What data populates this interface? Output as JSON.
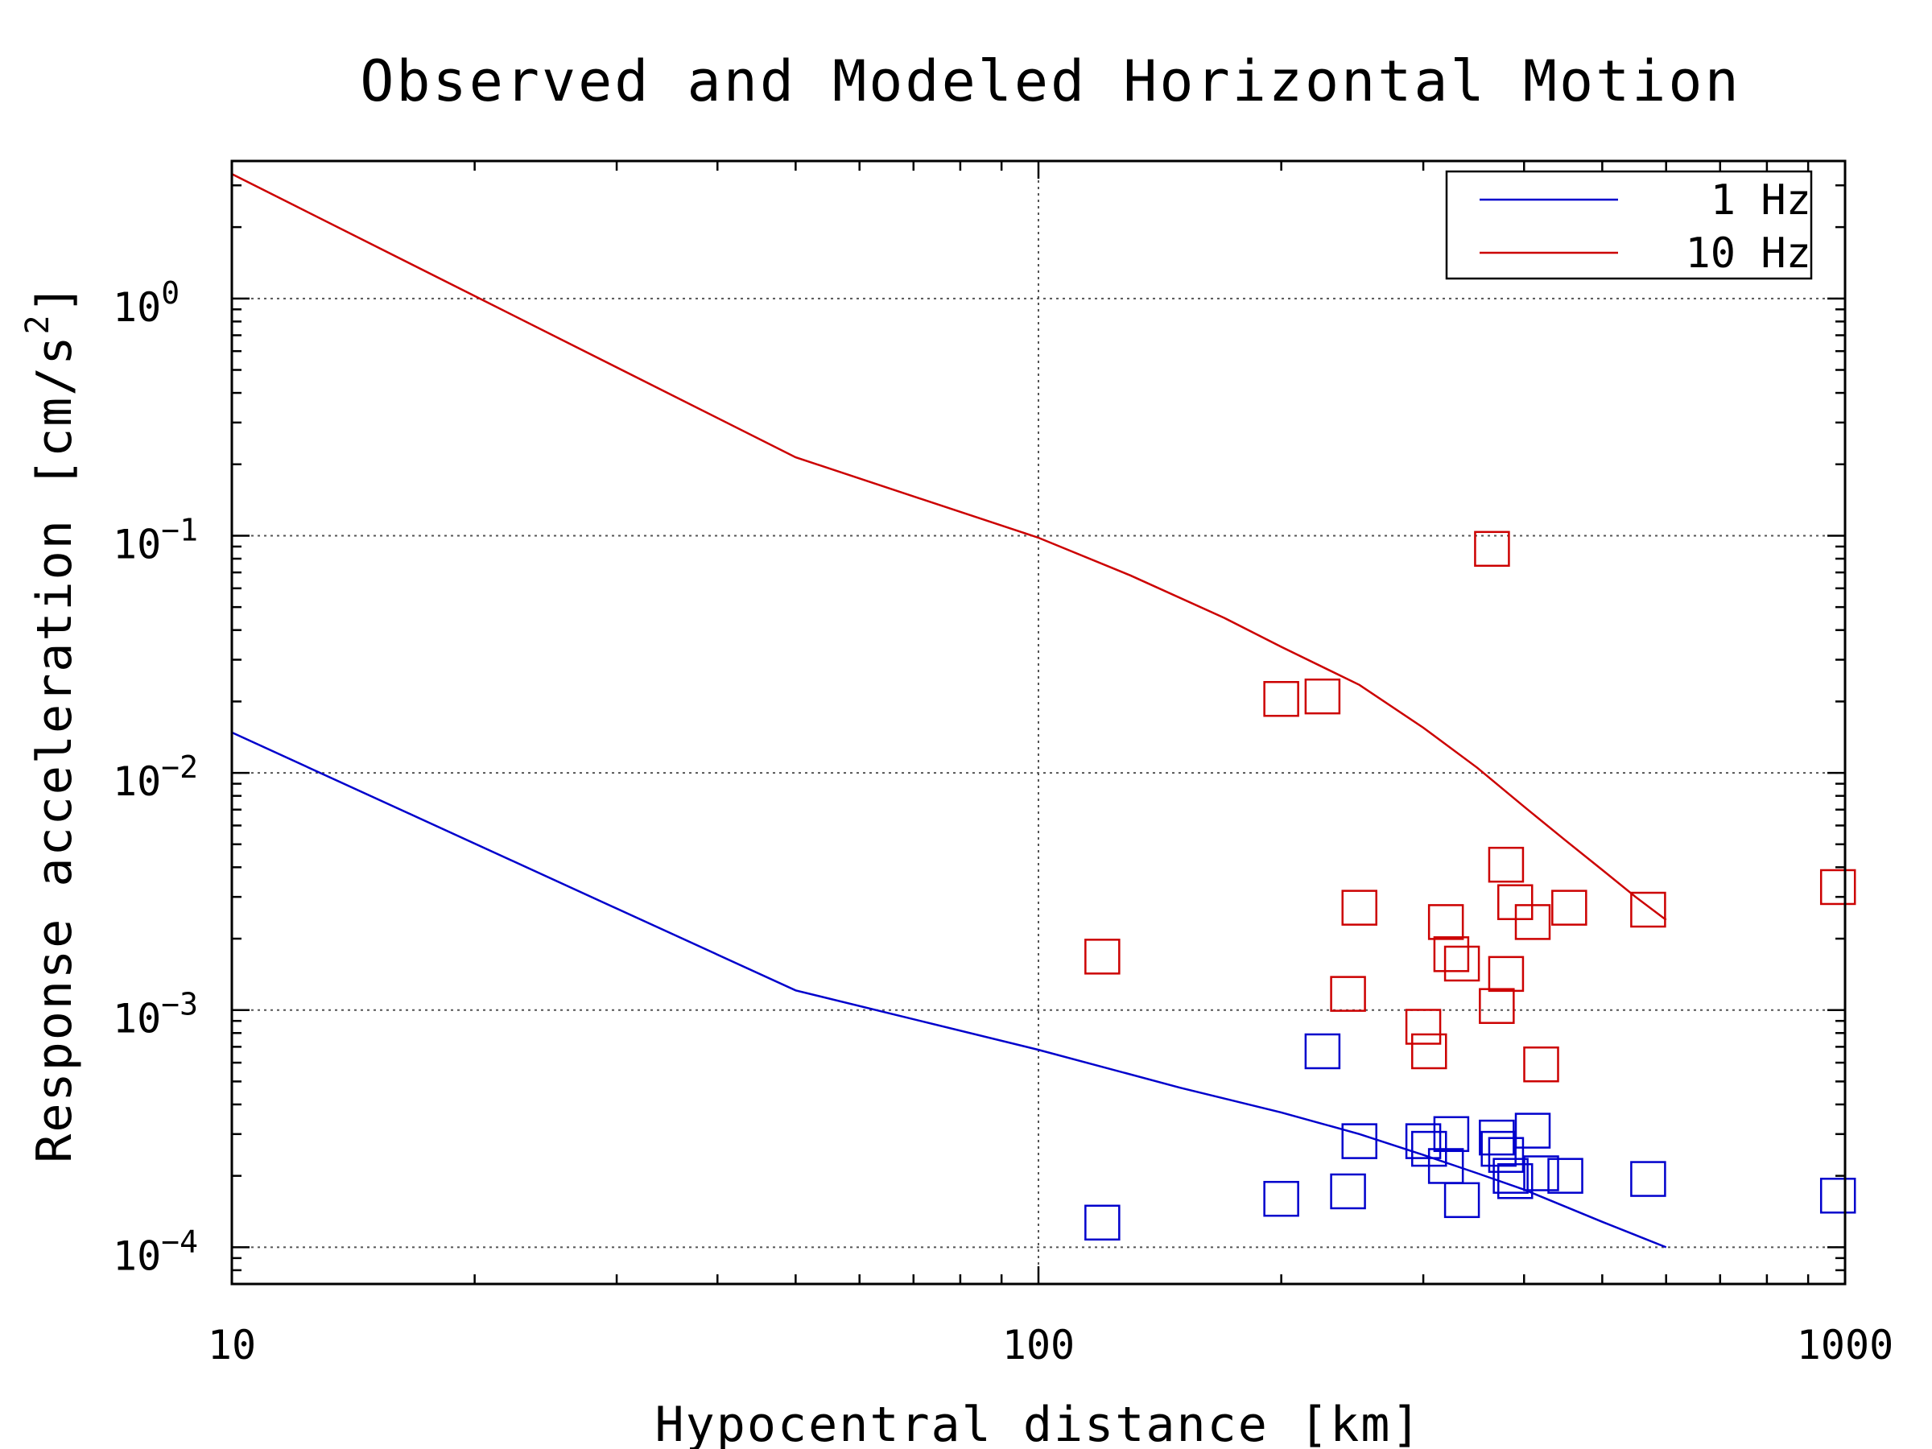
{
  "chart_data": {
    "type": "scatter",
    "title": "Observed and Modeled Horizontal Motion",
    "xlabel": "Hypocentral distance [km]",
    "ylabel": "Response acceleration [cm/s",
    "ylabel_sup": "2",
    "ylabel_end": "]",
    "xscale": "log",
    "yscale": "log",
    "xlim": [
      10,
      1000
    ],
    "ylim": [
      7e-05,
      3.8
    ],
    "grid": true,
    "legend_position": "top-right",
    "x_ticks": [
      {
        "value": 10,
        "label": "10"
      },
      {
        "value": 100,
        "label": "100"
      },
      {
        "value": 1000,
        "label": "1000"
      }
    ],
    "y_ticks": [
      {
        "value": 1,
        "base": "10",
        "exp": "0"
      },
      {
        "value": 0.1,
        "base": "10",
        "exp": "−1"
      },
      {
        "value": 0.01,
        "base": "10",
        "exp": "−2"
      },
      {
        "value": 0.001,
        "base": "10",
        "exp": "−3"
      },
      {
        "value": 0.0001,
        "base": "10",
        "exp": "−4"
      }
    ],
    "series": [
      {
        "name": "1 Hz",
        "color": "#0000cc",
        "line": {
          "x": [
            10,
            50,
            100,
            150,
            200,
            250,
            300,
            350,
            400,
            500,
            600
          ],
          "y": [
            0.0148,
            0.00121,
            0.00068,
            0.00047,
            0.00037,
            0.0003,
            0.000245,
            0.000205,
            0.000175,
            0.000128,
            0.0001
          ]
        },
        "points": [
          {
            "x": 120,
            "y": 0.000127
          },
          {
            "x": 200,
            "y": 0.00016
          },
          {
            "x": 225,
            "y": 0.00067
          },
          {
            "x": 242,
            "y": 0.000172
          },
          {
            "x": 250,
            "y": 0.00028
          },
          {
            "x": 300,
            "y": 0.00028
          },
          {
            "x": 305,
            "y": 0.00026
          },
          {
            "x": 320,
            "y": 0.00022
          },
          {
            "x": 325,
            "y": 0.0003
          },
          {
            "x": 335,
            "y": 0.000158
          },
          {
            "x": 370,
            "y": 0.00029
          },
          {
            "x": 372,
            "y": 0.00026
          },
          {
            "x": 380,
            "y": 0.000245
          },
          {
            "x": 385,
            "y": 0.0002
          },
          {
            "x": 390,
            "y": 0.00019
          },
          {
            "x": 410,
            "y": 0.00031
          },
          {
            "x": 420,
            "y": 0.000205
          },
          {
            "x": 450,
            "y": 0.0002
          },
          {
            "x": 570,
            "y": 0.000194
          },
          {
            "x": 980,
            "y": 0.000165
          }
        ]
      },
      {
        "name": "10 Hz",
        "color": "#cc0000",
        "line": {
          "x": [
            10,
            50,
            100,
            130,
            170,
            200,
            250,
            300,
            350,
            400,
            450,
            500,
            550,
            600
          ],
          "y": [
            3.35,
            0.214,
            0.098,
            0.068,
            0.045,
            0.034,
            0.0235,
            0.0155,
            0.0105,
            0.0072,
            0.0052,
            0.0039,
            0.003,
            0.0024
          ]
        },
        "points": [
          {
            "x": 120,
            "y": 0.00168
          },
          {
            "x": 200,
            "y": 0.0205
          },
          {
            "x": 225,
            "y": 0.021
          },
          {
            "x": 242,
            "y": 0.00117
          },
          {
            "x": 250,
            "y": 0.0027
          },
          {
            "x": 300,
            "y": 0.00085
          },
          {
            "x": 305,
            "y": 0.00067
          },
          {
            "x": 320,
            "y": 0.00235
          },
          {
            "x": 325,
            "y": 0.00172
          },
          {
            "x": 335,
            "y": 0.00157
          },
          {
            "x": 370,
            "y": 0.00104
          },
          {
            "x": 365,
            "y": 0.088
          },
          {
            "x": 380,
            "y": 0.0041
          },
          {
            "x": 380,
            "y": 0.00142
          },
          {
            "x": 390,
            "y": 0.00285
          },
          {
            "x": 410,
            "y": 0.00235
          },
          {
            "x": 420,
            "y": 0.00059
          },
          {
            "x": 455,
            "y": 0.0027
          },
          {
            "x": 570,
            "y": 0.00265
          },
          {
            "x": 980,
            "y": 0.0033
          }
        ]
      }
    ]
  }
}
